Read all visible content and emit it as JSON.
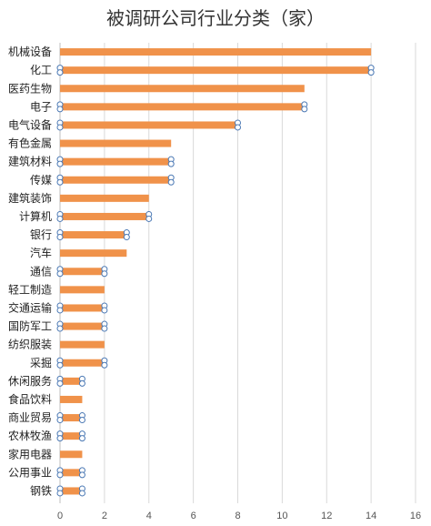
{
  "chart_data": {
    "type": "bar",
    "orientation": "horizontal",
    "title": "被调研公司行业分类（家）",
    "xlabel": "",
    "ylabel": "",
    "xlim": [
      0,
      16
    ],
    "xticks": [
      0,
      2,
      4,
      6,
      8,
      10,
      12,
      14,
      16
    ],
    "grid": true,
    "bar_color": "#f0924a",
    "handle_color": "#4a78b4",
    "categories": [
      "机械设备",
      "化工",
      "医药生物",
      "电子",
      "电气设备",
      "有色金属",
      "建筑材料",
      "传媒",
      "建筑装饰",
      "计算机",
      "银行",
      "汽车",
      "通信",
      "轻工制造",
      "交通运输",
      "国防军工",
      "纺织服装",
      "采掘",
      "休闲服务",
      "食品饮料",
      "商业贸易",
      "农林牧渔",
      "家用电器",
      "公用事业",
      "钢铁"
    ],
    "values": [
      14,
      14,
      11,
      11,
      8,
      5,
      5,
      5,
      4,
      4,
      3,
      3,
      2,
      2,
      2,
      2,
      2,
      2,
      1,
      1,
      1,
      1,
      1,
      1,
      1
    ],
    "selected_handles": [
      false,
      true,
      false,
      true,
      true,
      false,
      true,
      true,
      false,
      true,
      true,
      false,
      true,
      false,
      true,
      true,
      false,
      true,
      true,
      false,
      true,
      true,
      false,
      true,
      true
    ]
  }
}
